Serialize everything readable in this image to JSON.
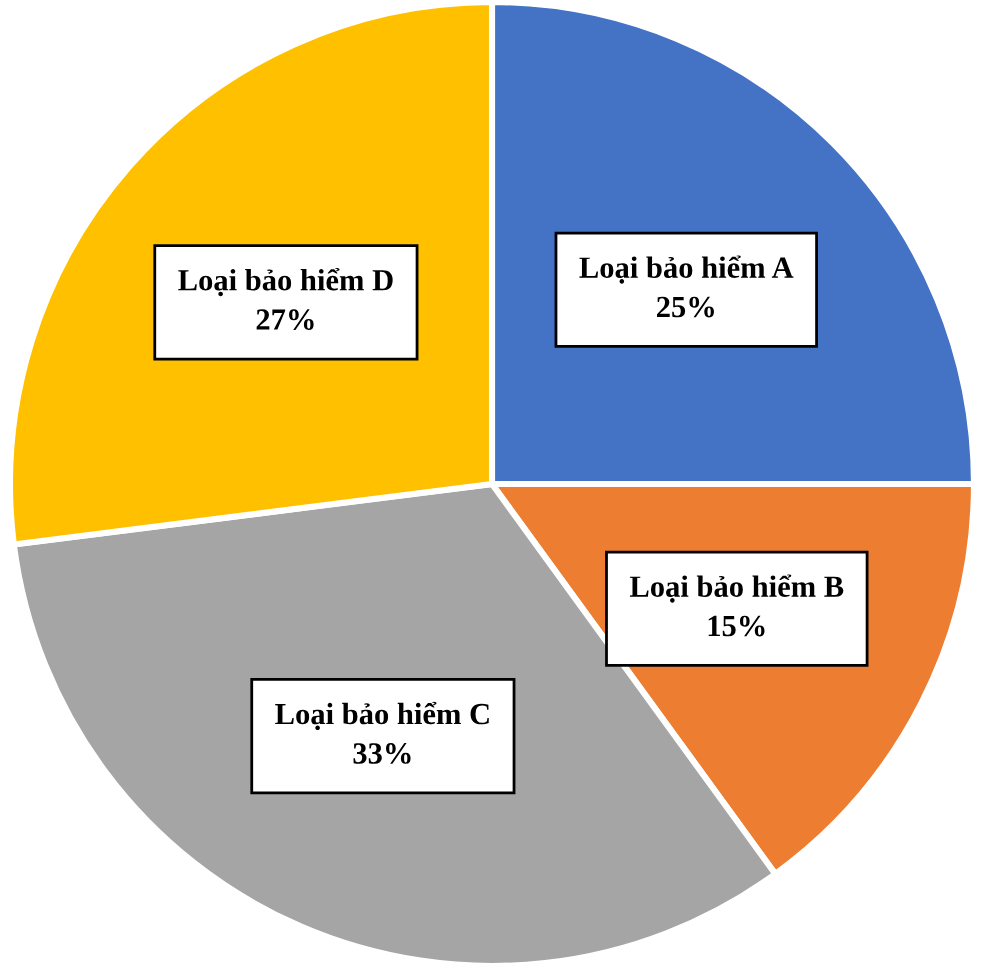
{
  "chart_data": {
    "type": "pie",
    "categories": [
      "Loại bảo hiểm A",
      "Loại bảo hiểm B",
      "Loại bảo hiểm C",
      "Loại bảo hiểm D"
    ],
    "values": [
      25,
      15,
      33,
      27
    ],
    "colors": [
      "#4472c4",
      "#ed7d31",
      "#a5a5a5",
      "#ffc000"
    ],
    "value_labels": [
      "25%",
      "15%",
      "33%",
      "27%"
    ]
  }
}
